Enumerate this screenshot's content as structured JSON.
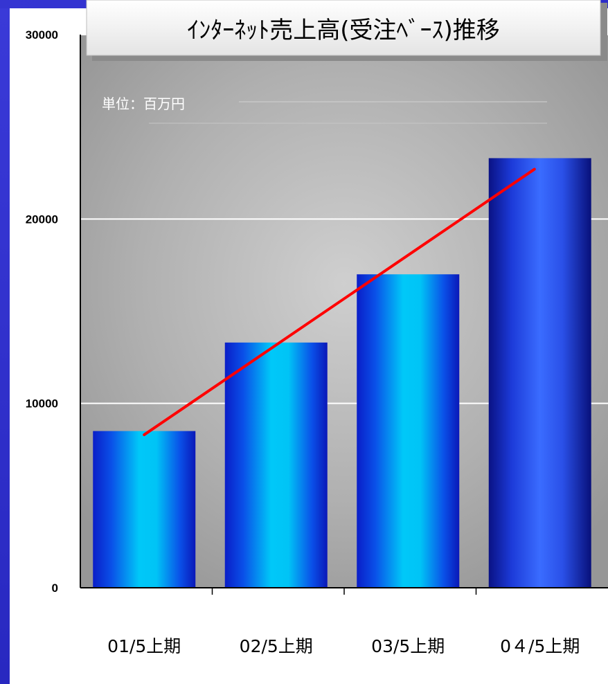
{
  "chart_data": {
    "type": "bar",
    "title": "ｲﾝﾀｰﾈｯﾄ売上高(受注ﾍﾞｰｽ)推移",
    "unit_label": "単位：百万円",
    "categories": [
      "01/5上期",
      "02/5上期",
      "03/5上期",
      "0４/5上期"
    ],
    "series": [
      {
        "values": [
          8500,
          13300,
          17000,
          23300
        ]
      }
    ],
    "trendline": {
      "color": "#ff0000",
      "start": 8300,
      "end": 22700
    },
    "y_ticks": [
      "0",
      "10000",
      "20000",
      "30000"
    ],
    "ylim": [
      0,
      30000
    ],
    "grid": true,
    "xlabel": "",
    "ylabel": "",
    "colors": {
      "bar_dark": "#0a1aa0",
      "bar_light": "#00c8f8",
      "bar_last_light": "#3a6cff",
      "plot_bg": "#a8a8a8",
      "frame_blue": "#2e2ec8"
    }
  }
}
